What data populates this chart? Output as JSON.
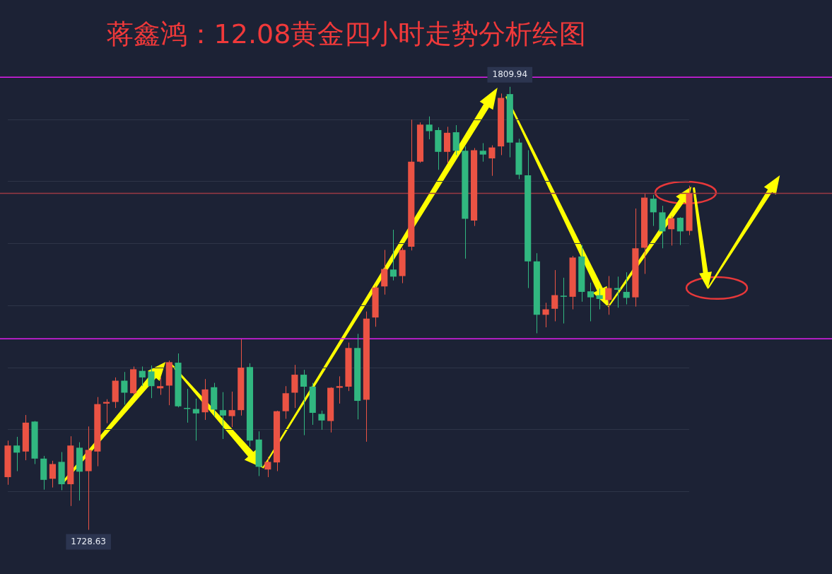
{
  "chart_data": {
    "type": "candlestick",
    "title": "蒋鑫鸿：12.08黄金四小时走势分析绘图",
    "categories": [
      null,
      null,
      null,
      null,
      null,
      null,
      null,
      null,
      null,
      null,
      null,
      null,
      null,
      null,
      null,
      null,
      null,
      null,
      null,
      null,
      null,
      null,
      null,
      null,
      null,
      null,
      null,
      null,
      null,
      null,
      null,
      null,
      null,
      null,
      null,
      null,
      null,
      null,
      null,
      null,
      null,
      null,
      null,
      null,
      null,
      null,
      null,
      null,
      null,
      null,
      null,
      null,
      null,
      null,
      null,
      null,
      null,
      null,
      null,
      null,
      null,
      null,
      null,
      null,
      null,
      null,
      null,
      null,
      null,
      null,
      null,
      null,
      null,
      null,
      null,
      null,
      null
    ],
    "ohlc": [
      [
        1738.3,
        1745.0,
        1736.9,
        1744.1
      ],
      [
        1744.1,
        1745.7,
        1739.4,
        1742.8
      ],
      [
        1743.0,
        1749.7,
        1741.4,
        1748.3
      ],
      [
        1748.5,
        1748.6,
        1740.7,
        1741.7
      ],
      [
        1741.7,
        1742.2,
        1736.0,
        1737.8
      ],
      [
        1738.0,
        1741.3,
        1736.4,
        1740.7
      ],
      [
        1741.1,
        1742.9,
        1735.9,
        1737.0
      ],
      [
        1737.0,
        1745.8,
        1733.0,
        1744.1
      ],
      [
        1743.7,
        1744.7,
        1734.0,
        1739.3
      ],
      [
        1739.4,
        1747.6,
        1728.63,
        1743.3
      ],
      [
        1743.0,
        1753.0,
        1740.3,
        1751.7
      ],
      [
        1751.8,
        1752.6,
        1748.2,
        1752.1
      ],
      [
        1752.1,
        1756.6,
        1751.0,
        1756.0
      ],
      [
        1756.0,
        1757.6,
        1751.6,
        1753.8
      ],
      [
        1753.7,
        1758.6,
        1753.4,
        1758.1
      ],
      [
        1757.8,
        1758.6,
        1755.0,
        1756.6
      ],
      [
        1757.7,
        1758.8,
        1752.8,
        1755.0
      ],
      [
        1754.6,
        1756.6,
        1753.4,
        1755.0
      ],
      [
        1755.1,
        1759.7,
        1751.5,
        1759.4
      ],
      [
        1759.3,
        1761.0,
        1751.1,
        1751.3
      ],
      [
        1751.0,
        1754.5,
        1748.3,
        1750.9
      ],
      [
        1750.8,
        1752.7,
        1745.0,
        1750.0
      ],
      [
        1750.2,
        1756.3,
        1748.8,
        1754.4
      ],
      [
        1754.8,
        1755.6,
        1749.5,
        1750.7
      ],
      [
        1750.6,
        1753.9,
        1745.3,
        1749.6
      ],
      [
        1749.5,
        1754.0,
        1747.5,
        1750.6
      ],
      [
        1750.6,
        1763.6,
        1749.6,
        1758.4
      ],
      [
        1758.5,
        1759.2,
        1743.9,
        1745.0
      ],
      [
        1745.2,
        1746.7,
        1738.5,
        1740.2
      ],
      [
        1739.7,
        1742.0,
        1738.3,
        1741.1
      ],
      [
        1741.0,
        1750.5,
        1739.4,
        1750.4
      ],
      [
        1750.4,
        1755.0,
        1749.0,
        1753.7
      ],
      [
        1753.8,
        1758.9,
        1751.0,
        1757.1
      ],
      [
        1757.1,
        1758.0,
        1746.0,
        1754.9
      ],
      [
        1754.9,
        1755.6,
        1747.9,
        1750.1
      ],
      [
        1749.9,
        1750.5,
        1747.0,
        1748.7
      ],
      [
        1748.6,
        1754.8,
        1746.5,
        1754.7
      ],
      [
        1754.7,
        1756.8,
        1751.8,
        1755.0
      ],
      [
        1754.9,
        1763.0,
        1754.1,
        1762.0
      ],
      [
        1762.0,
        1764.6,
        1748.9,
        1752.3
      ],
      [
        1752.5,
        1768.7,
        1744.8,
        1767.4
      ],
      [
        1767.6,
        1773.4,
        1765.9,
        1773.1
      ],
      [
        1773.3,
        1780.0,
        1771.8,
        1776.5
      ],
      [
        1776.4,
        1783.7,
        1774.4,
        1775.1
      ],
      [
        1775.2,
        1780.4,
        1773.9,
        1780.0
      ],
      [
        1780.6,
        1803.9,
        1779.9,
        1796.2
      ],
      [
        1796.2,
        1803.4,
        1796.0,
        1803.0
      ],
      [
        1803.0,
        1804.5,
        1800.3,
        1801.8
      ],
      [
        1802.0,
        1802.5,
        1794.7,
        1798.0
      ],
      [
        1798.0,
        1802.6,
        1795.9,
        1801.5
      ],
      [
        1801.6,
        1802.9,
        1797.4,
        1798.2
      ],
      [
        1798.2,
        1799.0,
        1778.4,
        1785.7
      ],
      [
        1785.4,
        1798.7,
        1784.4,
        1798.3
      ],
      [
        1798.2,
        1799.6,
        1796.2,
        1797.5
      ],
      [
        1796.8,
        1799.2,
        1793.6,
        1798.8
      ],
      [
        1799.0,
        1808.7,
        1797.4,
        1807.9
      ],
      [
        1808.6,
        1809.94,
        1797.0,
        1799.7
      ],
      [
        1799.7,
        1800.4,
        1793.0,
        1793.8
      ],
      [
        1793.7,
        1798.3,
        1773.0,
        1777.9
      ],
      [
        1777.9,
        1779.4,
        1764.7,
        1768.1
      ],
      [
        1768.1,
        1770.3,
        1765.8,
        1769.1
      ],
      [
        1769.2,
        1776.3,
        1766.9,
        1771.7
      ],
      [
        1771.6,
        1774.9,
        1766.5,
        1771.4
      ],
      [
        1771.4,
        1778.9,
        1769.1,
        1778.6
      ],
      [
        1778.8,
        1780.9,
        1770.5,
        1772.3
      ],
      [
        1772.4,
        1774.0,
        1766.9,
        1771.3
      ],
      [
        1771.7,
        1772.9,
        1769.1,
        1771.0
      ],
      [
        1770.8,
        1775.2,
        1768.1,
        1773.0
      ],
      [
        1773.0,
        1775.1,
        1769.4,
        1772.7
      ],
      [
        1772.3,
        1775.9,
        1770.0,
        1771.2
      ],
      [
        1771.3,
        1787.6,
        1769.6,
        1780.3
      ],
      [
        1780.4,
        1790.3,
        1775.6,
        1789.6
      ],
      [
        1789.4,
        1790.1,
        1784.4,
        1786.9
      ],
      [
        1786.9,
        1788.1,
        1780.3,
        1783.4
      ],
      [
        1783.8,
        1786.2,
        1780.8,
        1785.8
      ],
      [
        1785.9,
        1786.0,
        1780.9,
        1783.4
      ],
      [
        1783.5,
        1791.8,
        1782.7,
        1790.4
      ]
    ],
    "colors": [
      "#eb5344",
      "#31b780",
      "#eb5344",
      "#31b780",
      "#31b780",
      "#eb5344",
      "#31b780",
      "#eb5344",
      "#31b780",
      "#eb5344",
      "#eb5344",
      "#eb5344",
      "#eb5344",
      "#31b780",
      "#eb5344",
      "#31b780",
      "#31b780",
      "#eb5344",
      "#eb5344",
      "#31b780",
      "#31b780",
      "#31b780",
      "#eb5344",
      "#31b780",
      "#31b780",
      "#eb5344",
      "#eb5344",
      "#31b780",
      "#31b780",
      "#eb5344",
      "#eb5344",
      "#eb5344",
      "#eb5344",
      "#31b780",
      "#31b780",
      "#31b780",
      "#eb5344",
      "#eb5344",
      "#eb5344",
      "#31b780",
      "#eb5344",
      "#eb5344",
      "#eb5344",
      "#31b780",
      "#eb5344",
      "#eb5344",
      "#eb5344",
      "#31b780",
      "#31b780",
      "#eb5344",
      "#31b780",
      "#31b780",
      "#eb5344",
      "#31b780",
      "#eb5344",
      "#eb5344",
      "#31b780",
      "#31b780",
      "#31b780",
      "#31b780",
      "#eb5344",
      "#eb5344",
      "#31b780",
      "#eb5344",
      "#31b780",
      "#31b780",
      "#31b780",
      "#eb5344",
      "#31b780",
      "#31b780",
      "#eb5344",
      "#eb5344",
      "#31b780",
      "#31b780",
      "#eb5344",
      "#31b780",
      "#eb5344"
    ],
    "yticks": [
      {
        "value": 1735.6,
        "label": null
      },
      {
        "value": 1747.0,
        "label": null
      },
      {
        "value": 1758.4,
        "label": null
      },
      {
        "value": 1769.8,
        "label": null
      },
      {
        "value": 1781.2,
        "label": null
      },
      {
        "value": 1792.6,
        "label": null
      },
      {
        "value": 1803.9,
        "label": null
      }
    ],
    "grid": "y",
    "ref_lines": [
      {
        "axis": "y",
        "value": 1811.7,
        "color": "#e21cf0"
      },
      {
        "axis": "y",
        "value": 1763.7,
        "color": "#e21cf0"
      },
      {
        "axis": "y",
        "value": 1790.4,
        "color": "#9a3a44"
      }
    ],
    "annotations": [
      {
        "text": "1809.94",
        "y": 1809.94
      },
      {
        "text": "1728.63",
        "y": 1728.63
      }
    ]
  }
}
